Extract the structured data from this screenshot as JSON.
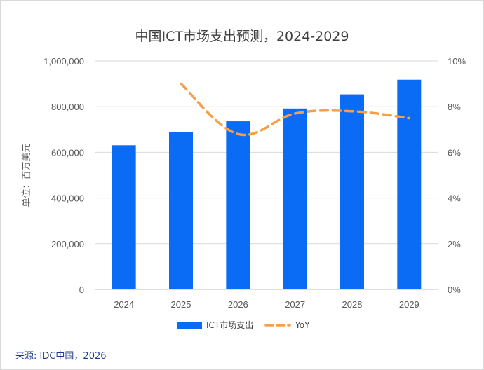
{
  "chart_data": {
    "type": "bar",
    "title": "中国ICT市场支出预测，2024-2029",
    "ylabel": "单位：百万美元",
    "categories": [
      "2024",
      "2025",
      "2026",
      "2027",
      "2028",
      "2029"
    ],
    "ylim": [
      0,
      1000000
    ],
    "y2lim": [
      0,
      10
    ],
    "y_ticks": [
      "0",
      "200,000",
      "400,000",
      "600,000",
      "800,000",
      "1,000,000"
    ],
    "y2_ticks": [
      "0%",
      "2%",
      "4%",
      "6%",
      "8%",
      "10%"
    ],
    "series": [
      {
        "name": "ICT市场支出",
        "type": "bar",
        "axis": "left",
        "color": "#0a6cf5",
        "values": [
          631000,
          688000,
          736000,
          792000,
          854000,
          918000
        ]
      },
      {
        "name": "YoY",
        "type": "line",
        "axis": "right",
        "style": "dashed",
        "color": "#f5a048",
        "values": [
          null,
          9.0,
          6.8,
          7.7,
          7.8,
          7.5
        ]
      }
    ],
    "grid": true,
    "legend": "bottom"
  },
  "source": "来源: IDC中国，2026"
}
